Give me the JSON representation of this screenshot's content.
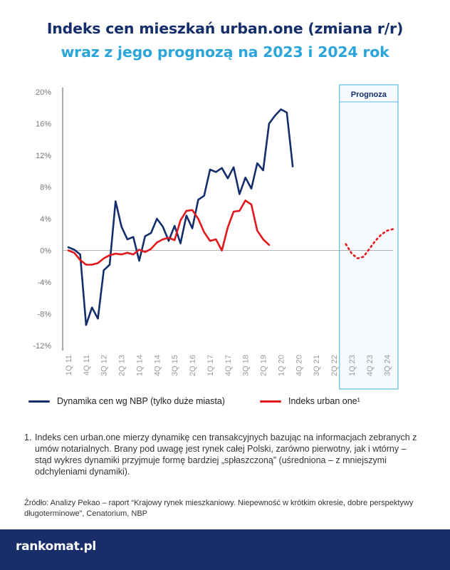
{
  "title": {
    "line1": "Indeks cen mieszkań urban.one (zmiana r/r)",
    "line2": "wraz z jego prognozą na 2023 i 2024 rok"
  },
  "colors": {
    "navy": "#142d6b",
    "light_blue": "#2ba5da",
    "red": "#e3161b",
    "forecast_border": "#5cbde3",
    "forecast_bg": "#f6fafd",
    "footer_bg": "#1a2d6b"
  },
  "chart_data": {
    "type": "line",
    "ylim": [
      -12,
      20
    ],
    "yticks": [
      20,
      16,
      12,
      8,
      4,
      0,
      -4,
      -8,
      -12
    ],
    "ytick_labels": [
      "20%",
      "16%",
      "12%",
      "8%",
      "4%",
      "0%",
      "-4%",
      "-8%",
      "-12%"
    ],
    "x_range": [
      "1Q 11",
      "4Q 24"
    ],
    "xtick_labels": [
      "1Q 11",
      "4Q 11",
      "3Q 12",
      "2Q 13",
      "1Q 14",
      "4Q 14",
      "3Q 15",
      "2Q 16",
      "1Q 17",
      "4Q 17",
      "3Q 18",
      "2Q 19",
      "1Q 20",
      "4Q 20",
      "3Q 21",
      "2Q 22",
      "1Q 23",
      "4Q 23",
      "3Q 24"
    ],
    "grid": false,
    "forecast_region": {
      "label": "Prognoza",
      "from": "4Q 22",
      "to": "4Q 24"
    },
    "series": [
      {
        "name": "Dynamika cen wg NBP (tylko duże miasta)",
        "color": "#142d6b",
        "style": "solid",
        "points": [
          [
            "1Q 11",
            0.4
          ],
          [
            "2Q 11",
            0.1
          ],
          [
            "3Q 11",
            -0.5
          ],
          [
            "4Q 11",
            -9.4
          ],
          [
            "1Q 12",
            -7.2
          ],
          [
            "2Q 12",
            -8.6
          ],
          [
            "3Q 12",
            -2.5
          ],
          [
            "4Q 12",
            -1.8
          ],
          [
            "1Q 13",
            6.2
          ],
          [
            "2Q 13",
            3.0
          ],
          [
            "3Q 13",
            1.4
          ],
          [
            "4Q 13",
            1.7
          ],
          [
            "1Q 14",
            -1.3
          ],
          [
            "2Q 14",
            1.8
          ],
          [
            "3Q 14",
            2.2
          ],
          [
            "4Q 14",
            4.0
          ],
          [
            "1Q 15",
            3.0
          ],
          [
            "2Q 15",
            1.2
          ],
          [
            "3Q 15",
            3.1
          ],
          [
            "4Q 15",
            0.9
          ],
          [
            "1Q 16",
            4.4
          ],
          [
            "2Q 16",
            2.8
          ],
          [
            "3Q 16",
            6.4
          ],
          [
            "4Q 16",
            6.9
          ],
          [
            "1Q 17",
            10.2
          ],
          [
            "2Q 17",
            9.9
          ],
          [
            "3Q 17",
            10.4
          ],
          [
            "4Q 17",
            9.1
          ],
          [
            "1Q 18",
            10.5
          ],
          [
            "2Q 18",
            7.1
          ],
          [
            "3Q 18",
            9.2
          ],
          [
            "4Q 18",
            7.8
          ],
          [
            "1Q 19",
            11.0
          ],
          [
            "2Q 19",
            10.1
          ],
          [
            "3Q 19",
            16.0
          ],
          [
            "4Q 19",
            17.0
          ],
          [
            "1Q 20",
            17.8
          ],
          [
            "2Q 20",
            17.4
          ],
          [
            "3Q 20",
            10.6
          ]
        ]
      },
      {
        "name": "Indeks urban one¹",
        "color": "#e3161b",
        "style": "solid",
        "points": [
          [
            "1Q 11",
            0.0
          ],
          [
            "2Q 11",
            -0.3
          ],
          [
            "3Q 11",
            -1.2
          ],
          [
            "4Q 11",
            -1.8
          ],
          [
            "1Q 12",
            -1.8
          ],
          [
            "2Q 12",
            -1.6
          ],
          [
            "3Q 12",
            -1.0
          ],
          [
            "4Q 12",
            -0.6
          ],
          [
            "1Q 13",
            -0.4
          ],
          [
            "2Q 13",
            -0.5
          ],
          [
            "3Q 13",
            -0.3
          ],
          [
            "4Q 13",
            -0.5
          ],
          [
            "1Q 14",
            0.1
          ],
          [
            "2Q 14",
            -0.2
          ],
          [
            "3Q 14",
            0.2
          ],
          [
            "4Q 14",
            1.0
          ],
          [
            "1Q 15",
            1.4
          ],
          [
            "2Q 15",
            1.6
          ],
          [
            "3Q 15",
            1.3
          ],
          [
            "4Q 15",
            3.8
          ],
          [
            "1Q 16",
            5.0
          ],
          [
            "2Q 16",
            5.1
          ],
          [
            "3Q 16",
            4.0
          ],
          [
            "4Q 16",
            2.3
          ],
          [
            "1Q 17",
            1.2
          ],
          [
            "2Q 17",
            1.4
          ],
          [
            "3Q 17",
            0.0
          ],
          [
            "4Q 17",
            2.9
          ],
          [
            "1Q 18",
            4.9
          ],
          [
            "2Q 18",
            5.0
          ],
          [
            "3Q 18",
            6.3
          ],
          [
            "4Q 18",
            5.8
          ],
          [
            "1Q 19",
            2.5
          ],
          [
            "2Q 19",
            1.4
          ],
          [
            "3Q 19",
            0.7
          ]
        ]
      },
      {
        "name": "Prognoza indeksu urban one",
        "color": "#e3161b",
        "style": "dotted",
        "points": [
          [
            "4Q 22",
            0.8
          ],
          [
            "1Q 23",
            -0.4
          ],
          [
            "2Q 23",
            -1.0
          ],
          [
            "3Q 23",
            -0.8
          ],
          [
            "4Q 23",
            0.2
          ],
          [
            "1Q 24",
            1.2
          ],
          [
            "2Q 24",
            2.0
          ],
          [
            "3Q 24",
            2.5
          ],
          [
            "4Q 24",
            2.7
          ]
        ]
      }
    ]
  },
  "legend": {
    "nbp_label": "Dynamika cen wg NBP (tylko duże miasta)",
    "urban_label": "Indeks urban one¹"
  },
  "footnote": {
    "number": "1.",
    "text": "Indeks cen urban.one mierzy dynamikę cen transakcyjnych bazując na informacjach zebranych z umów notarialnych. Brany pod uwagę jest rynek całej Polski, zarówno pierwotny, jak i wtórny – stąd wykres dynamiki przyjmuje formę bardziej „spłaszczoną” (uśredniona – z mniejszymi odchyleniami dynamiki)."
  },
  "source": {
    "text": "Źródło: Analizy Pekao – raport “Krajowy rynek mieszkaniowy. Niepewność w krótkim okresie, dobre perspektywy długoterminowe”, Cenatorium, NBP"
  },
  "footer": {
    "logo_text": "rankomat.pl"
  }
}
